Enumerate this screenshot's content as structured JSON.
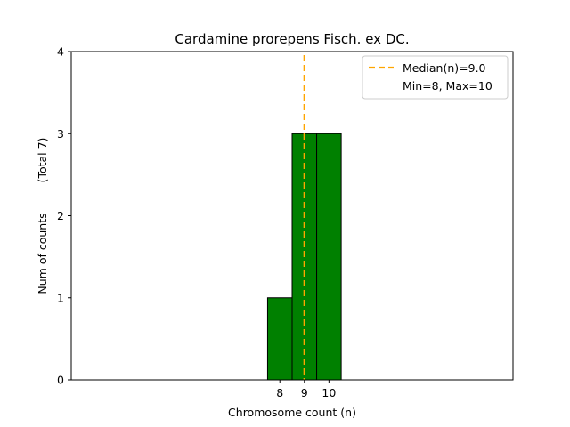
{
  "chart_data": {
    "type": "bar",
    "title": "Cardamine prorepens Fisch. ex DC.",
    "xlabel": "Chromosome count (n)",
    "ylabel": "Num of counts",
    "ylabel_total": "(Total 7)",
    "categories": [
      8,
      9,
      10
    ],
    "values": [
      1,
      3,
      3
    ],
    "bar_color": "#008000",
    "bar_edge_color": "#000000",
    "median": 9.0,
    "median_color": "#FFA500",
    "xticks": [
      "8",
      "9",
      "10"
    ],
    "yticks": [
      "0",
      "1",
      "2",
      "3",
      "4"
    ],
    "ylim": [
      0,
      4
    ],
    "xlim": [
      -0.5,
      17.5
    ],
    "legend": {
      "position": "top-right",
      "entries": [
        "Median(n)=9.0",
        "Min=8, Max=10"
      ]
    },
    "grid": false
  }
}
